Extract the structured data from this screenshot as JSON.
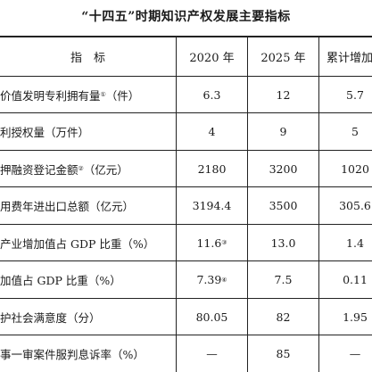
{
  "document": {
    "title": "“十四五”时期知识产权发展主要指标",
    "table": {
      "headers": [
        "指　标",
        "2020 年",
        "2025 年",
        "累计增加"
      ],
      "rows": [
        {
          "indicator": "价值发明专利拥有量",
          "note": "①",
          "unit": "（件）",
          "v2020": "6.3",
          "v2020_note": "",
          "v2025": "12",
          "increase": "5.7"
        },
        {
          "indicator": "利授权量（万件）",
          "note": "",
          "unit": "",
          "v2020": "4",
          "v2020_note": "",
          "v2025": "9",
          "increase": "5"
        },
        {
          "indicator": "押融资登记金额",
          "note": "②",
          "unit": "（亿元）",
          "v2020": "2180",
          "v2020_note": "",
          "v2025": "3200",
          "increase": "1020"
        },
        {
          "indicator": "用费年进出口总额（亿元）",
          "note": "",
          "unit": "",
          "v2020": "3194.4",
          "v2020_note": "",
          "v2025": "3500",
          "increase": "305.6"
        },
        {
          "indicator": "产业增加值占 GDP 比重（%）",
          "note": "",
          "unit": "",
          "v2020": "11.6",
          "v2020_note": "③",
          "v2025": "13.0",
          "increase": "1.4"
        },
        {
          "indicator": "加值占 GDP 比重（%）",
          "note": "",
          "unit": "",
          "v2020": "7.39",
          "v2020_note": "④",
          "v2025": "7.5",
          "increase": "0.11"
        },
        {
          "indicator": "护社会满意度（分）",
          "note": "",
          "unit": "",
          "v2020": "80.05",
          "v2020_note": "",
          "v2025": "82",
          "increase": "1.95"
        },
        {
          "indicator": "事一审案件服判息诉率（%）",
          "note": "",
          "unit": "",
          "v2020": "—",
          "v2020_note": "",
          "v2025": "85",
          "increase": "—"
        }
      ]
    }
  }
}
